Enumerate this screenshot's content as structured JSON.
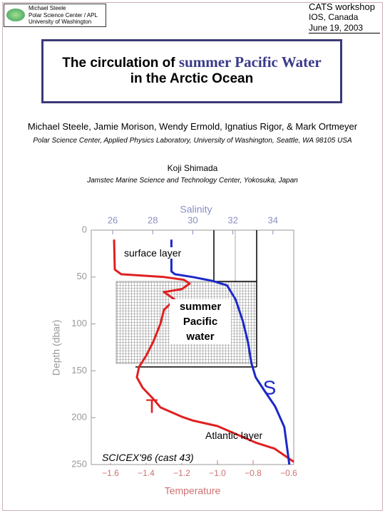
{
  "header": {
    "logo_lines": [
      "Michael Steele",
      "Polar Science Center / APL",
      "University of Washington"
    ],
    "event_lines": [
      "CATS workshop",
      "IOS, Canada",
      "June 19, 2003"
    ]
  },
  "title": {
    "part1": "The circulation of ",
    "part2": "summer Pacific Water",
    "part3": "in the Arctic Ocean"
  },
  "authors": "Michael Steele, Jamie Morison, Wendy Ermold, Ignatius Rigor, & Mark Ortmeyer",
  "affiliation": "Polar Science Center, Applied Physics Laboratory, University of Washington, Seattle, WA 98105 USA",
  "author2": "Koji Shimada",
  "affiliation2": "Jamstec Marine Science and Technology Center, Yokosuka, Japan",
  "chart_data": {
    "type": "line",
    "xlabel": "Temperature",
    "x2label": "Salinity",
    "ylabel": "Depth (dbar)",
    "ylim": [
      0,
      250
    ],
    "yticks": [
      0,
      50,
      100,
      150,
      200,
      250
    ],
    "y_inverted": true,
    "xlim": [
      -1.708,
      -0.572
    ],
    "xticks": [
      {
        "value": -1.6,
        "label": "−1.6"
      },
      {
        "value": -1.4,
        "label": "−1.4"
      },
      {
        "value": -1.2,
        "label": "−1.2"
      },
      {
        "value": -1.0,
        "label": "−1.0"
      },
      {
        "value": -0.8,
        "label": "−0.8"
      },
      {
        "value": -0.6,
        "label": "−0.6"
      }
    ],
    "x2lim": [
      24.93,
      35.04
    ],
    "x2ticks": [
      26,
      28,
      30,
      32,
      34
    ],
    "series": [
      {
        "name": "T",
        "color": "#e02020",
        "axis": "x",
        "x": [
          -1.58,
          -1.576,
          -1.54,
          -1.3,
          -1.188,
          -1.156,
          -1.2,
          -1.3,
          -1.24,
          -1.3,
          -1.32,
          -1.36,
          -1.4,
          -1.44,
          -1.452,
          -1.42,
          -1.36,
          -1.32,
          -1.2,
          -1.14,
          -1.0,
          -0.78,
          -0.68,
          -0.572
        ],
        "y": [
          10,
          42,
          47,
          50,
          53,
          57,
          63,
          66,
          74,
          85,
          100,
          119,
          134,
          146,
          157,
          168,
          180,
          189,
          199,
          203,
          209,
          227,
          233,
          247
        ]
      },
      {
        "name": "S",
        "color": "#1c28c8",
        "axis": "x2",
        "x": [
          28.93,
          28.93,
          29.11,
          30.0,
          30.96,
          31.71,
          32.14,
          32.5,
          32.75,
          32.93,
          33.14,
          33.57,
          34.11,
          34.57,
          34.82
        ],
        "y": [
          10,
          44,
          47,
          50,
          54,
          59,
          74,
          97,
          119,
          142,
          157,
          171,
          188,
          210,
          250
        ]
      }
    ],
    "annotations": [
      "surface layer",
      "summer Pacific water",
      "Atlantic layer",
      "SCICEX'96 (cast 43)"
    ]
  }
}
